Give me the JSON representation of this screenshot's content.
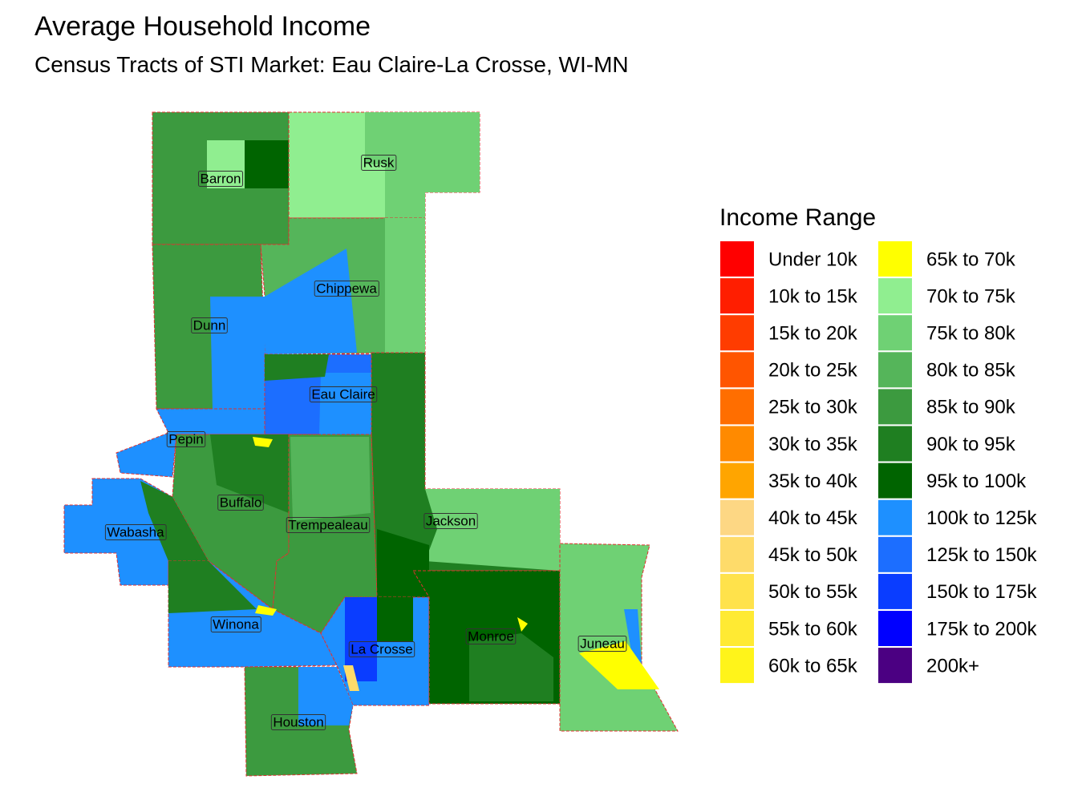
{
  "title": "Average Household Income",
  "subtitle": "Census Tracts of STI Market: Eau Claire-La Crosse, WI-MN",
  "legend": {
    "title": "Income Range",
    "items": [
      {
        "label": "Under 10k",
        "color": "#ff0000"
      },
      {
        "label": "10k to 15k",
        "color": "#ff1e00"
      },
      {
        "label": "15k to 20k",
        "color": "#ff3c00"
      },
      {
        "label": "20k to 25k",
        "color": "#ff5500"
      },
      {
        "label": "25k to 30k",
        "color": "#ff6e00"
      },
      {
        "label": "30k to 35k",
        "color": "#ff8a00"
      },
      {
        "label": "35k to 40k",
        "color": "#ffa500"
      },
      {
        "label": "40k to 45k",
        "color": "#fdd784"
      },
      {
        "label": "45k to 50k",
        "color": "#fedb6a"
      },
      {
        "label": "50k to 55k",
        "color": "#ffe24b"
      },
      {
        "label": "55k to 60k",
        "color": "#ffea33"
      },
      {
        "label": "60k to 65k",
        "color": "#fff41a"
      },
      {
        "label": "65k to 70k",
        "color": "#ffff00"
      },
      {
        "label": "70k to 75k",
        "color": "#90ee90"
      },
      {
        "label": "75k to 80k",
        "color": "#6fd174"
      },
      {
        "label": "80k to 85k",
        "color": "#55b55a"
      },
      {
        "label": "85k to 90k",
        "color": "#3c9a3f"
      },
      {
        "label": "90k to 95k",
        "color": "#1f7f21"
      },
      {
        "label": "95k to 100k",
        "color": "#006400"
      },
      {
        "label": "100k to 125k",
        "color": "#1e90ff"
      },
      {
        "label": "125k to 150k",
        "color": "#1c6eff"
      },
      {
        "label": "150k to 175k",
        "color": "#0a3dff"
      },
      {
        "label": "175k to 200k",
        "color": "#0000ff"
      },
      {
        "label": "200k+",
        "color": "#4b0082"
      }
    ]
  },
  "counties": [
    "Barron",
    "Rusk",
    "Chippewa",
    "Dunn",
    "Eau Claire",
    "Pepin",
    "Buffalo",
    "Trempealeau",
    "Jackson",
    "Wabasha",
    "Winona",
    "La Crosse",
    "Monroe",
    "Juneau",
    "Houston"
  ]
}
